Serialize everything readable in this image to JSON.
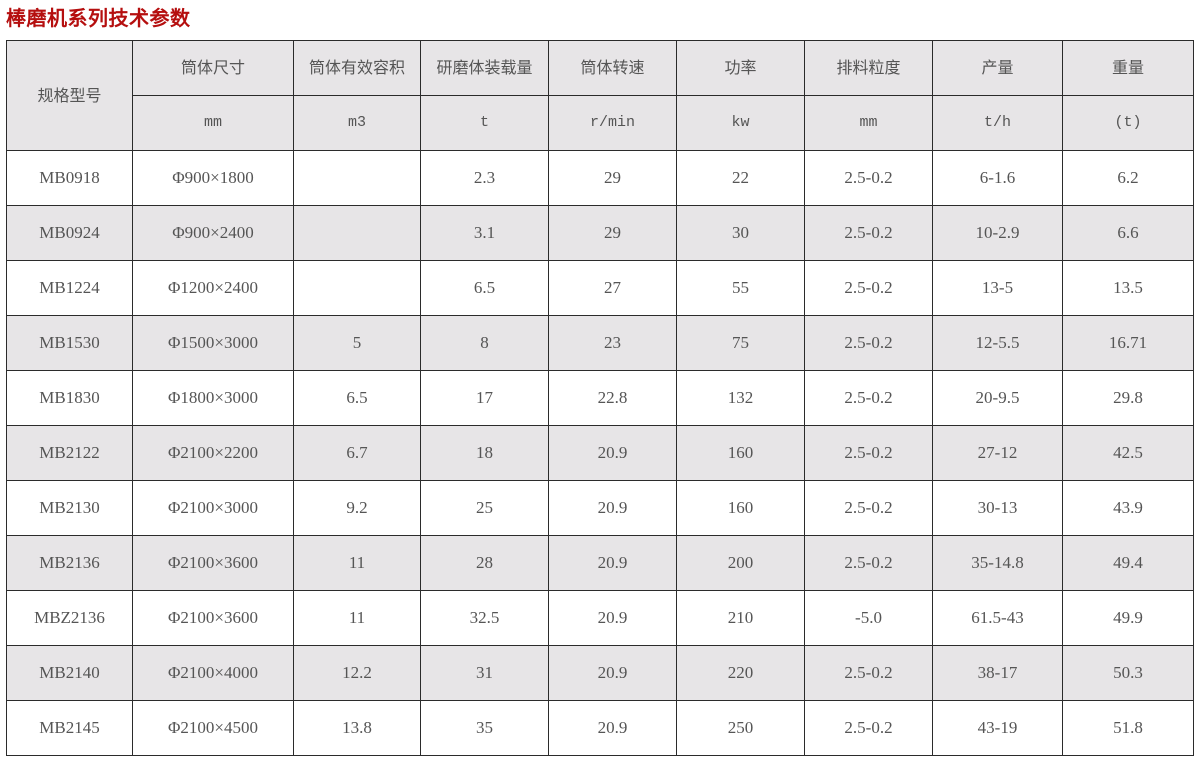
{
  "title": "棒磨机系列技术参数",
  "colors": {
    "title": "#b50f0f",
    "header_bg": "#e7e5e7",
    "alt_row_bg": "#e7e5e7",
    "text": "#555555"
  },
  "table": {
    "model_header": "规格型号",
    "headers": [
      "筒体尺寸",
      "筒体有效容积",
      "研磨体装载量",
      "筒体转速",
      "功率",
      "排料粒度",
      "产量",
      "重量"
    ],
    "units": [
      "mm",
      "m3",
      "t",
      "r/min",
      "kw",
      "mm",
      "t/h",
      "(t)"
    ],
    "rows": [
      [
        "MB0918",
        "Φ900×1800",
        "",
        "2.3",
        "29",
        "22",
        "2.5-0.2",
        "6-1.6",
        "6.2"
      ],
      [
        "MB0924",
        "Φ900×2400",
        "",
        "3.1",
        "29",
        "30",
        "2.5-0.2",
        "10-2.9",
        "6.6"
      ],
      [
        "MB1224",
        "Φ1200×2400",
        "",
        "6.5",
        "27",
        "55",
        "2.5-0.2",
        "13-5",
        "13.5"
      ],
      [
        "MB1530",
        "Φ1500×3000",
        "5",
        "8",
        "23",
        "75",
        "2.5-0.2",
        "12-5.5",
        "16.71"
      ],
      [
        "MB1830",
        "Φ1800×3000",
        "6.5",
        "17",
        "22.8",
        "132",
        "2.5-0.2",
        "20-9.5",
        "29.8"
      ],
      [
        "MB2122",
        "Φ2100×2200",
        "6.7",
        "18",
        "20.9",
        "160",
        "2.5-0.2",
        "27-12",
        "42.5"
      ],
      [
        "MB2130",
        "Φ2100×3000",
        "9.2",
        "25",
        "20.9",
        "160",
        "2.5-0.2",
        "30-13",
        "43.9"
      ],
      [
        "MB2136",
        "Φ2100×3600",
        "11",
        "28",
        "20.9",
        "200",
        "2.5-0.2",
        "35-14.8",
        "49.4"
      ],
      [
        "MBZ2136",
        "Φ2100×3600",
        "11",
        "32.5",
        "20.9",
        "210",
        "-5.0",
        "61.5-43",
        "49.9"
      ],
      [
        "MB2140",
        "Φ2100×4000",
        "12.2",
        "31",
        "20.9",
        "220",
        "2.5-0.2",
        "38-17",
        "50.3"
      ],
      [
        "MB2145",
        "Φ2100×4500",
        "13.8",
        "35",
        "20.9",
        "250",
        "2.5-0.2",
        "43-19",
        "51.8"
      ]
    ]
  }
}
